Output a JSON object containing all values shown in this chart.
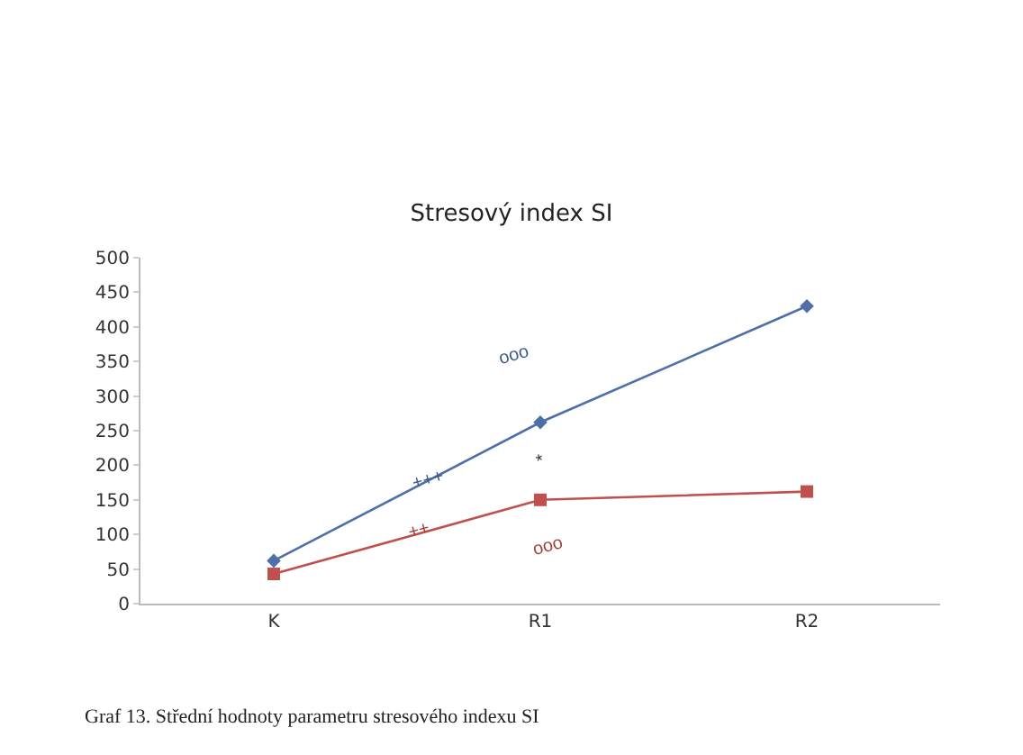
{
  "chart_data": {
    "type": "line",
    "title": "Stresový index SI",
    "categories": [
      "K",
      "R1",
      "R2"
    ],
    "series": [
      {
        "color": "#4f6fa8",
        "marker": "diamond",
        "values": [
          62,
          262,
          430
        ]
      },
      {
        "color": "#c0504d",
        "marker": "square",
        "values": [
          43,
          150,
          162
        ]
      }
    ],
    "ylim": [
      0,
      500
    ],
    "yticks": [
      0,
      50,
      100,
      150,
      200,
      250,
      300,
      350,
      400,
      450,
      500
    ],
    "grid": false,
    "annotations": [
      "+++",
      "ooo",
      "*",
      "++",
      "ooo",
      "Graf 13. Střední hodnoty parametru stresového indexu SI"
    ]
  }
}
